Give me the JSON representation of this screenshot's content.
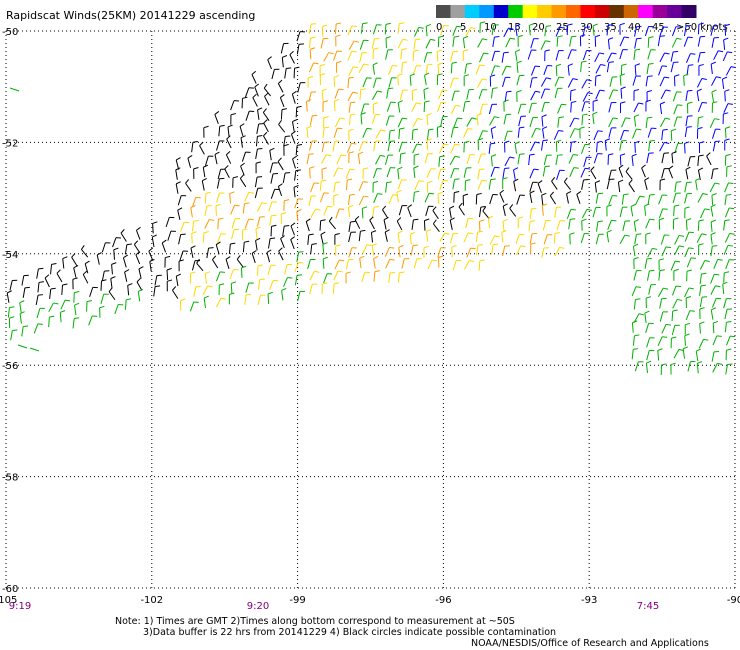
{
  "title": "Rapidscat Winds(25KM) 20141229 ascending",
  "legend": {
    "unit_label": "knots",
    "labels": [
      "0",
      "5",
      "10",
      "15",
      "20",
      "25",
      "30",
      "35",
      "40",
      "45",
      ">50 knots"
    ],
    "colors": [
      "#4d4d4d",
      "#a0a0a0",
      "#00ccff",
      "#0099ff",
      "#0000cc",
      "#00cc00",
      "#ffff00",
      "#ffcc00",
      "#ff9900",
      "#ff6600",
      "#ff0000",
      "#cc0000",
      "#663300",
      "#cc6600",
      "#ff00ff",
      "#990099",
      "#660099",
      "#330066"
    ]
  },
  "map": {
    "lon_ticks": [
      "-105",
      "-102",
      "-99",
      "-96",
      "-93",
      "-90"
    ],
    "lat_ticks": [
      "-50",
      "-52",
      "-54",
      "-56",
      "-58",
      "-60"
    ],
    "lon_range": [
      -105,
      -90
    ],
    "lat_range": [
      -50,
      -60
    ],
    "time_labels": [
      "9:19",
      "9:20",
      "7:45"
    ],
    "time_label_color": "#800080"
  },
  "wind_barb_colors": {
    "calm_black": "#000000",
    "speed_blue": "#0000ff",
    "speed_green": "#00b000",
    "speed_yellow": "#ffd700",
    "speed_orange": "#ff9900",
    "speed_red": "#ff3300"
  },
  "footer": {
    "note_line1": "Note: 1) Times are GMT 2)Times along bottom correspond to measurement at ~50S",
    "note_line2": "3)Data buffer is 22 hrs from 20141229 4) Black circles indicate possible contamination",
    "credit": "NOAA/NESDIS/Office of Research and Applications"
  }
}
